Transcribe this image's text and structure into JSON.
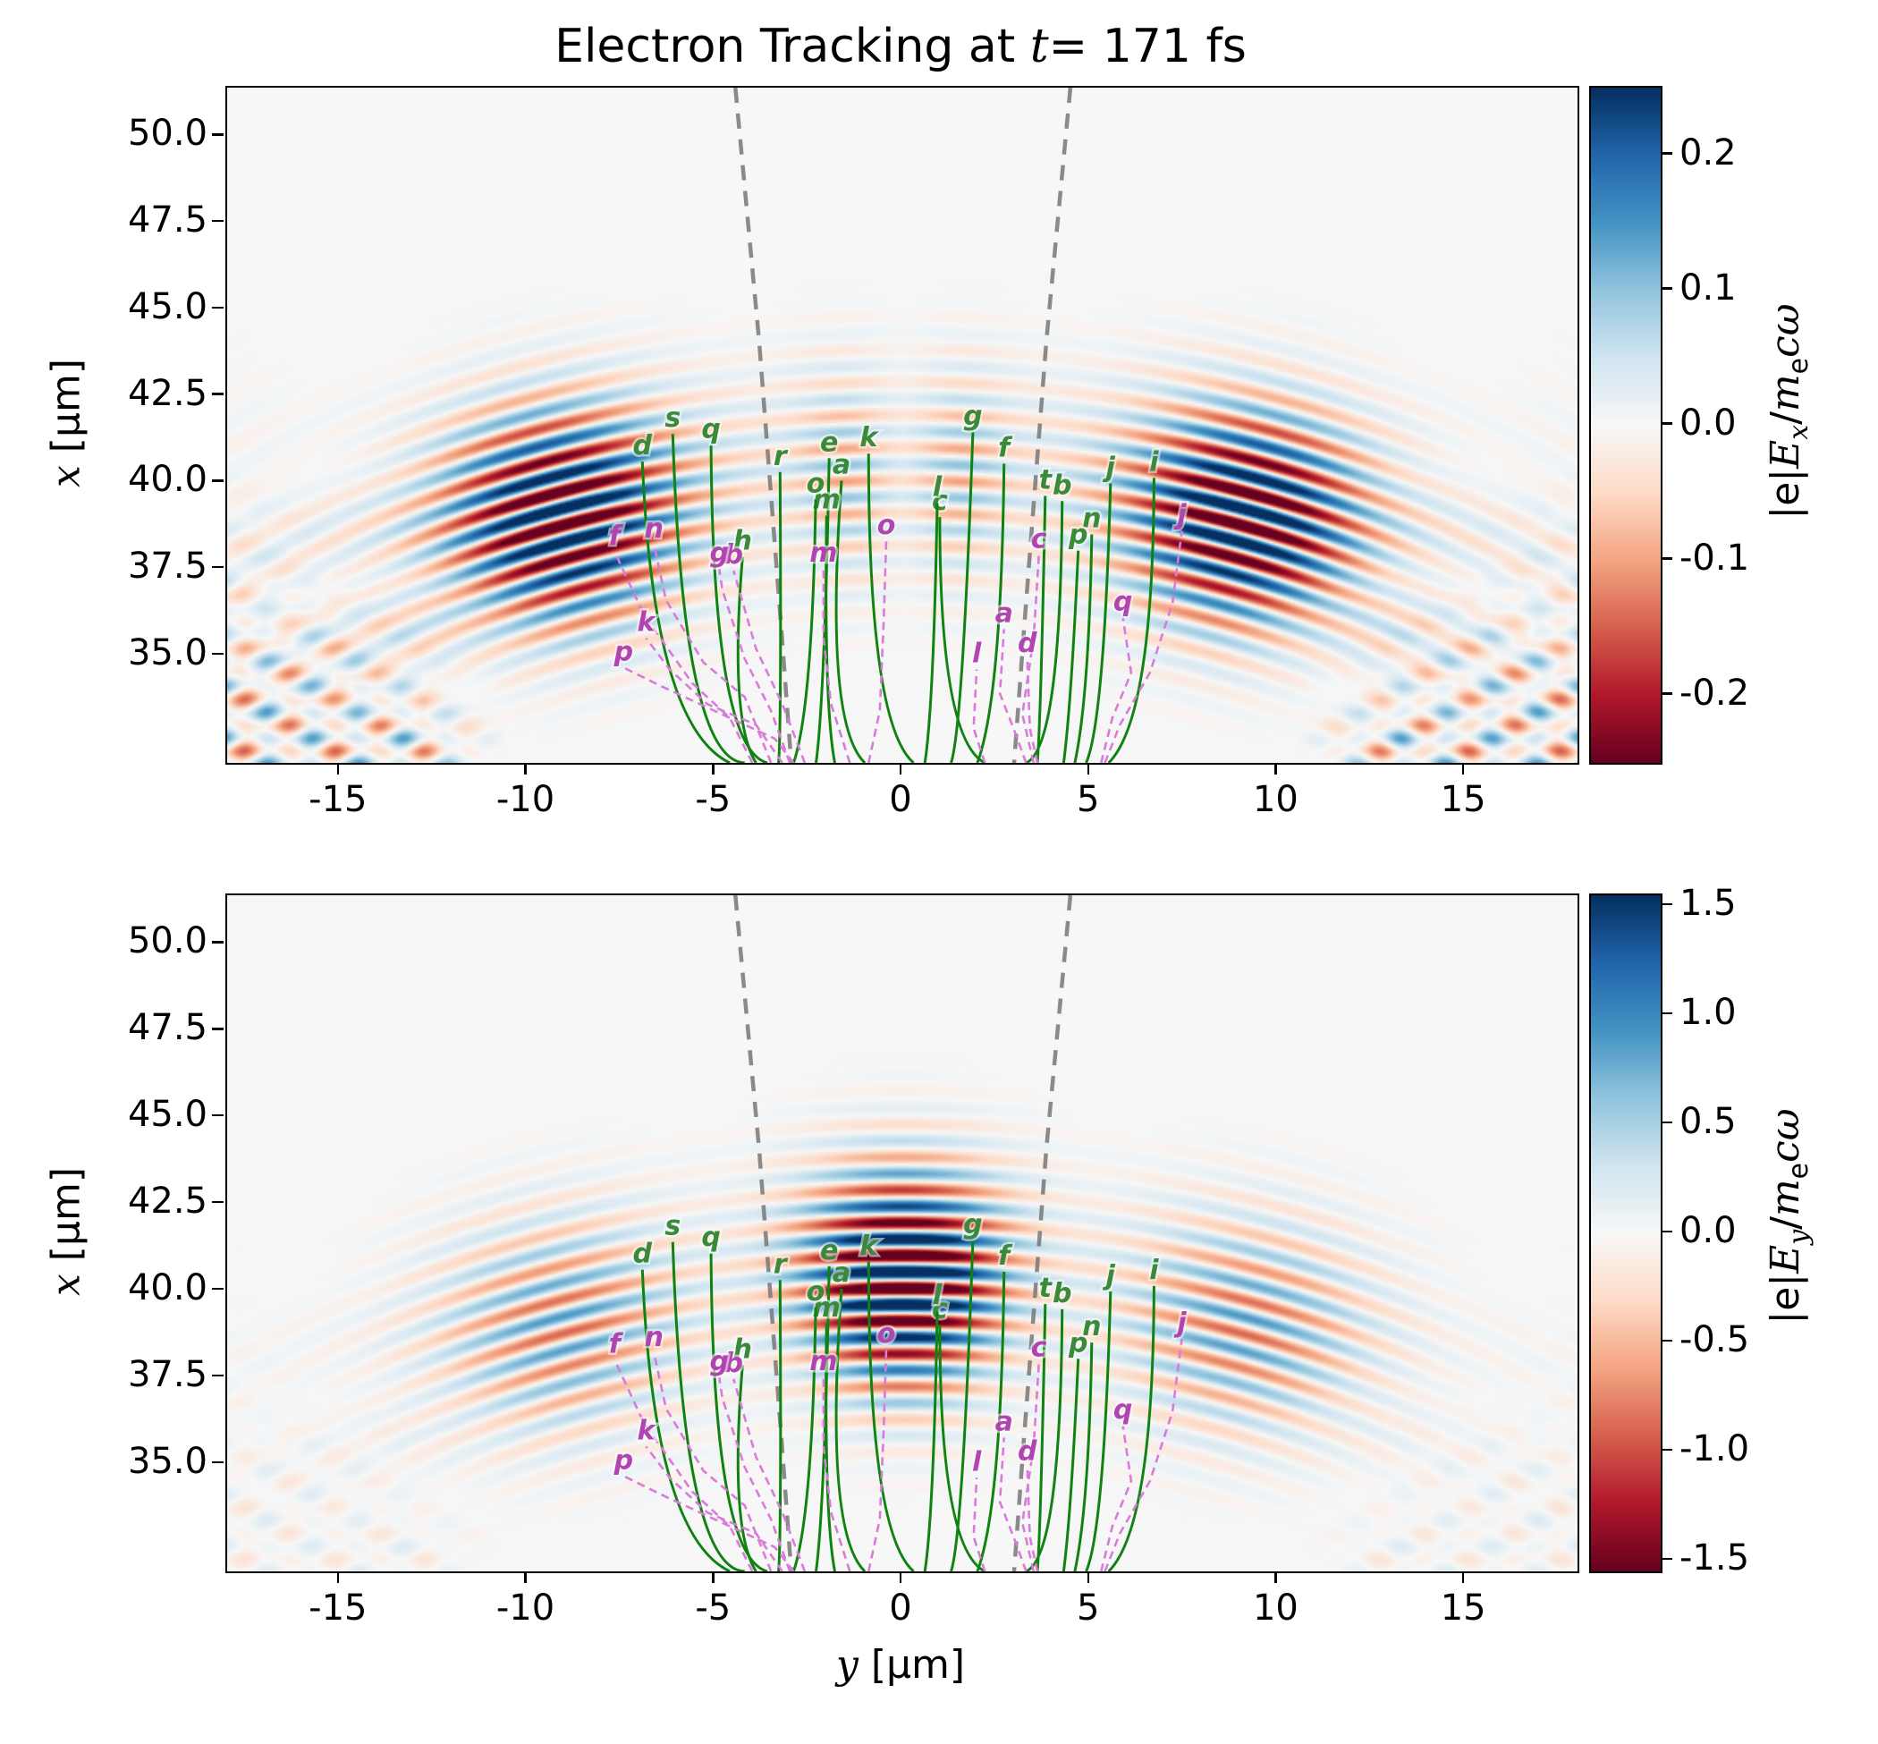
{
  "figure": {
    "title": {
      "prefix": "Electron Tracking at ",
      "var": "t",
      "suffix": "= 171 fs"
    },
    "xlabel": {
      "var": "y",
      "suffix": " [μm]"
    },
    "ylabel": {
      "var": "x",
      "suffix": " [μm]"
    }
  },
  "colorbars": [
    {
      "label": {
        "pre": "|e|",
        "sym": "E",
        "sub": "x",
        "slash": "/",
        "m": "m",
        "msub": "e",
        "tail": "cω"
      }
    },
    {
      "label": {
        "pre": "|e|",
        "sym": "E",
        "sub": "y",
        "slash": "/",
        "m": "m",
        "msub": "e",
        "tail": "cω"
      }
    }
  ],
  "style": {
    "green_line": "#108210",
    "green_label": "#3a8a3a",
    "magenta_line": "#d97bd9",
    "magenta_label": "#b044b0",
    "cone_color": "#7b7b7b",
    "spine_color": "#000000",
    "background": "#f6f6f6",
    "colormap_stops": [
      "#67001f",
      "#b2182b",
      "#d6604d",
      "#f4a582",
      "#fddbc7",
      "#f7f7f7",
      "#d1e5f0",
      "#92c5de",
      "#4393c3",
      "#2166ac",
      "#053061"
    ]
  },
  "chart_data": {
    "type": "heatmap",
    "title": "Electron Tracking at t = 171 fs",
    "xlabel": "y [μm]",
    "ylabel": "x [μm]",
    "xlim": [
      -18,
      18
    ],
    "ylim": [
      31.9,
      51.4
    ],
    "xticks": [
      -15,
      -10,
      -5,
      0,
      5,
      10,
      15
    ],
    "yticks": [
      35.0,
      37.5,
      40.0,
      42.5,
      45.0,
      47.5,
      50.0
    ],
    "xtick_labels": [
      "-15",
      "-10",
      "-5",
      "0",
      "5",
      "10",
      "15"
    ],
    "ytick_labels": [
      "35.0",
      "37.5",
      "40.0",
      "42.5",
      "45.0",
      "47.5",
      "50.0"
    ],
    "colormap": "RdBu",
    "grid": false,
    "subplots": [
      {
        "name": "Ex",
        "colorbar_label": "|e|Ex/mecω",
        "clim": [
          -0.25,
          0.25
        ],
        "colorbar_ticks": [
          0.2,
          0.1,
          0.0,
          -0.1,
          -0.2
        ],
        "colorbar_tick_labels": [
          "0.2",
          "0.1",
          "0.0",
          "-0.1",
          "-0.2"
        ],
        "field": {
          "xc": 8.0,
          "r0": 32.3,
          "sigma": 3.0,
          "lam": 0.95,
          "lobes": [
            {
              "a": 0.3,
              "th": 0.285,
              "w": 0.09
            },
            {
              "a": 0.07,
              "th": 0.047,
              "w": 0.04
            },
            {
              "a": 0.05,
              "th": 0.25,
              "w": 0.3
            }
          ],
          "checker": {
            "amp": 0.1,
            "streak": 0.05,
            "k": 4.19,
            "slope": 0.62
          }
        }
      },
      {
        "name": "Ey",
        "colorbar_label": "|e|Ey/mecω",
        "clim": [
          -1.55,
          1.55
        ],
        "colorbar_ticks": [
          1.5,
          1.0,
          0.5,
          0.0,
          -0.5,
          -1.0,
          -1.5
        ],
        "colorbar_tick_labels": [
          "1.5",
          "1.0",
          "0.5",
          "0.0",
          "-0.5",
          "-1.0",
          "-1.5"
        ],
        "field": {
          "xc": 8.0,
          "r0": 32.3,
          "sigma": 3.0,
          "lam": 0.95,
          "lobes": [
            {
              "a": 2.3,
              "th": 0.0,
              "w": 0.08
            },
            {
              "a": 0.8,
              "th": 0.285,
              "w": 0.1
            },
            {
              "a": 0.1,
              "th": 0.25,
              "w": 0.3
            }
          ],
          "checker": {
            "amp": 0.15,
            "streak": 0.07,
            "k": 4.19,
            "slope": 0.62
          }
        }
      }
    ],
    "cone": {
      "left": [
        [
          -4.45,
          51.4
        ],
        [
          -3.82,
          44.1
        ],
        [
          -3.22,
          35.7
        ],
        [
          -2.96,
          31.9
        ]
      ],
      "right": [
        [
          4.48,
          51.4
        ],
        [
          3.84,
          44.1
        ],
        [
          3.24,
          35.7
        ],
        [
          2.98,
          31.9
        ]
      ]
    },
    "tracks_green": [
      {
        "label": "a",
        "start": [
          -1.0,
          31.9
        ],
        "mid": [
          -1.7,
          34.5
        ],
        "end": [
          -1.62,
          40.05
        ]
      },
      {
        "label": "b",
        "start": [
          3.3,
          31.9
        ],
        "mid": [
          4.0,
          34.0
        ],
        "end": [
          4.26,
          39.46
        ]
      },
      {
        "label": "c",
        "start": [
          2.2,
          31.9
        ],
        "mid": [
          1.3,
          34.0
        ],
        "end": [
          1.0,
          39.0
        ]
      },
      {
        "label": "d",
        "start": [
          -4.6,
          31.9
        ],
        "mid": [
          -6.2,
          34.6
        ],
        "end": [
          -6.93,
          40.6
        ]
      },
      {
        "label": "e",
        "start": [
          -2.3,
          31.9
        ],
        "mid": [
          -2.1,
          35.0
        ],
        "end": [
          -1.95,
          40.7
        ]
      },
      {
        "label": "f",
        "start": [
          2.0,
          31.9
        ],
        "mid": [
          2.5,
          35.0
        ],
        "end": [
          2.71,
          40.54
        ]
      },
      {
        "label": "g",
        "start": [
          1.3,
          31.9
        ],
        "mid": [
          1.6,
          34.8
        ],
        "end": [
          1.88,
          41.45
        ]
      },
      {
        "label": "h",
        "start": [
          -3.9,
          31.9
        ],
        "mid": [
          -4.35,
          34.0
        ],
        "end": [
          -4.26,
          37.85
        ]
      },
      {
        "label": "i",
        "start": [
          5.5,
          31.9
        ],
        "mid": [
          6.4,
          34.6
        ],
        "end": [
          6.71,
          40.13
        ]
      },
      {
        "label": "j",
        "start": [
          4.9,
          31.9
        ],
        "mid": [
          5.3,
          34.5
        ],
        "end": [
          5.55,
          39.97
        ]
      },
      {
        "label": "k",
        "start": [
          0.3,
          31.9
        ],
        "mid": [
          -0.6,
          34.7
        ],
        "end": [
          -0.9,
          40.83
        ]
      },
      {
        "label": "l",
        "start": [
          0.6,
          31.9
        ],
        "mid": [
          0.8,
          34.6
        ],
        "end": [
          0.93,
          39.4
        ]
      },
      {
        "label": "m",
        "start": [
          -1.8,
          31.9
        ],
        "mid": [
          -2.0,
          34.5
        ],
        "end": [
          -2.02,
          39.04
        ]
      },
      {
        "label": "n",
        "start": [
          4.6,
          31.9
        ],
        "mid": [
          4.9,
          34.5
        ],
        "end": [
          5.05,
          38.5
        ]
      },
      {
        "label": "o",
        "start": [
          -2.9,
          31.9
        ],
        "mid": [
          -2.5,
          34.6
        ],
        "end": [
          -2.31,
          39.51
        ]
      },
      {
        "label": "p",
        "start": [
          4.3,
          31.9
        ],
        "mid": [
          4.5,
          34.3
        ],
        "end": [
          4.69,
          38.03
        ]
      },
      {
        "label": "q",
        "start": [
          -3.6,
          31.9
        ],
        "mid": [
          -4.7,
          34.4
        ],
        "end": [
          -5.1,
          41.08
        ]
      },
      {
        "label": "r",
        "start": [
          -3.3,
          31.9
        ],
        "mid": [
          -3.25,
          34.5
        ],
        "end": [
          -3.26,
          40.3
        ]
      },
      {
        "label": "s",
        "start": [
          -4.2,
          31.9
        ],
        "mid": [
          -5.5,
          34.3
        ],
        "end": [
          -6.12,
          41.4
        ]
      },
      {
        "label": "t",
        "start": [
          3.6,
          31.9
        ],
        "mid": [
          3.7,
          34.5
        ],
        "end": [
          3.81,
          39.61
        ]
      }
    ],
    "tracks_magenta": [
      {
        "label": "a",
        "points": [
          [
            3.3,
            31.9
          ],
          [
            3.0,
            32.8
          ],
          [
            2.6,
            33.9
          ],
          [
            2.71,
            35.76
          ]
        ]
      },
      {
        "label": "b",
        "points": [
          [
            -2.6,
            31.9
          ],
          [
            -3.2,
            33.6
          ],
          [
            -3.9,
            35.2
          ],
          [
            -4.5,
            37.45
          ]
        ]
      },
      {
        "label": "c",
        "points": [
          [
            3.5,
            31.9
          ],
          [
            3.2,
            33.3
          ],
          [
            3.5,
            35.5
          ],
          [
            3.64,
            37.9
          ]
        ]
      },
      {
        "label": "d",
        "points": [
          [
            3.6,
            31.9
          ],
          [
            3.4,
            32.9
          ],
          [
            3.33,
            34.9
          ]
        ]
      },
      {
        "label": "f",
        "points": [
          [
            -4.0,
            31.9
          ],
          [
            -4.6,
            33.2
          ],
          [
            -5.6,
            34.2
          ],
          [
            -6.9,
            36.2
          ],
          [
            -7.67,
            38.0
          ]
        ]
      },
      {
        "label": "g",
        "points": [
          [
            -3.0,
            31.9
          ],
          [
            -3.5,
            33.4
          ],
          [
            -4.2,
            34.9
          ],
          [
            -4.8,
            36.9
          ],
          [
            -4.88,
            37.5
          ]
        ]
      },
      {
        "label": "j",
        "points": [
          [
            5.4,
            31.9
          ],
          [
            5.8,
            33.0
          ],
          [
            6.6,
            34.5
          ],
          [
            7.2,
            36.5
          ],
          [
            7.45,
            38.6
          ]
        ]
      },
      {
        "label": "k",
        "points": [
          [
            -3.2,
            31.9
          ],
          [
            -3.9,
            33.0
          ],
          [
            -5.2,
            33.6
          ],
          [
            -6.2,
            34.6
          ],
          [
            -6.83,
            35.5
          ]
        ]
      },
      {
        "label": "l",
        "points": [
          [
            2.2,
            31.9
          ],
          [
            1.9,
            32.9
          ],
          [
            1.98,
            34.6
          ]
        ]
      },
      {
        "label": "m",
        "points": [
          [
            -1.4,
            31.9
          ],
          [
            -1.9,
            33.6
          ],
          [
            -2.1,
            35.5
          ],
          [
            -2.1,
            37.5
          ]
        ]
      },
      {
        "label": "n",
        "points": [
          [
            -3.5,
            31.9
          ],
          [
            -4.2,
            33.8
          ],
          [
            -5.3,
            34.8
          ],
          [
            -6.3,
            36.6
          ],
          [
            -6.62,
            38.2
          ]
        ]
      },
      {
        "label": "o",
        "points": [
          [
            -0.9,
            31.9
          ],
          [
            -0.6,
            33.4
          ],
          [
            -0.5,
            35.9
          ],
          [
            -0.43,
            38.3
          ]
        ]
      },
      {
        "label": "p",
        "points": [
          [
            -2.9,
            31.9
          ],
          [
            -3.4,
            32.6
          ],
          [
            -4.6,
            33.2
          ],
          [
            -6.4,
            34.1
          ],
          [
            -7.43,
            34.65
          ]
        ]
      },
      {
        "label": "q",
        "points": [
          [
            5.3,
            31.9
          ],
          [
            5.6,
            33.2
          ],
          [
            6.1,
            34.5
          ],
          [
            5.88,
            36.1
          ]
        ]
      }
    ]
  }
}
